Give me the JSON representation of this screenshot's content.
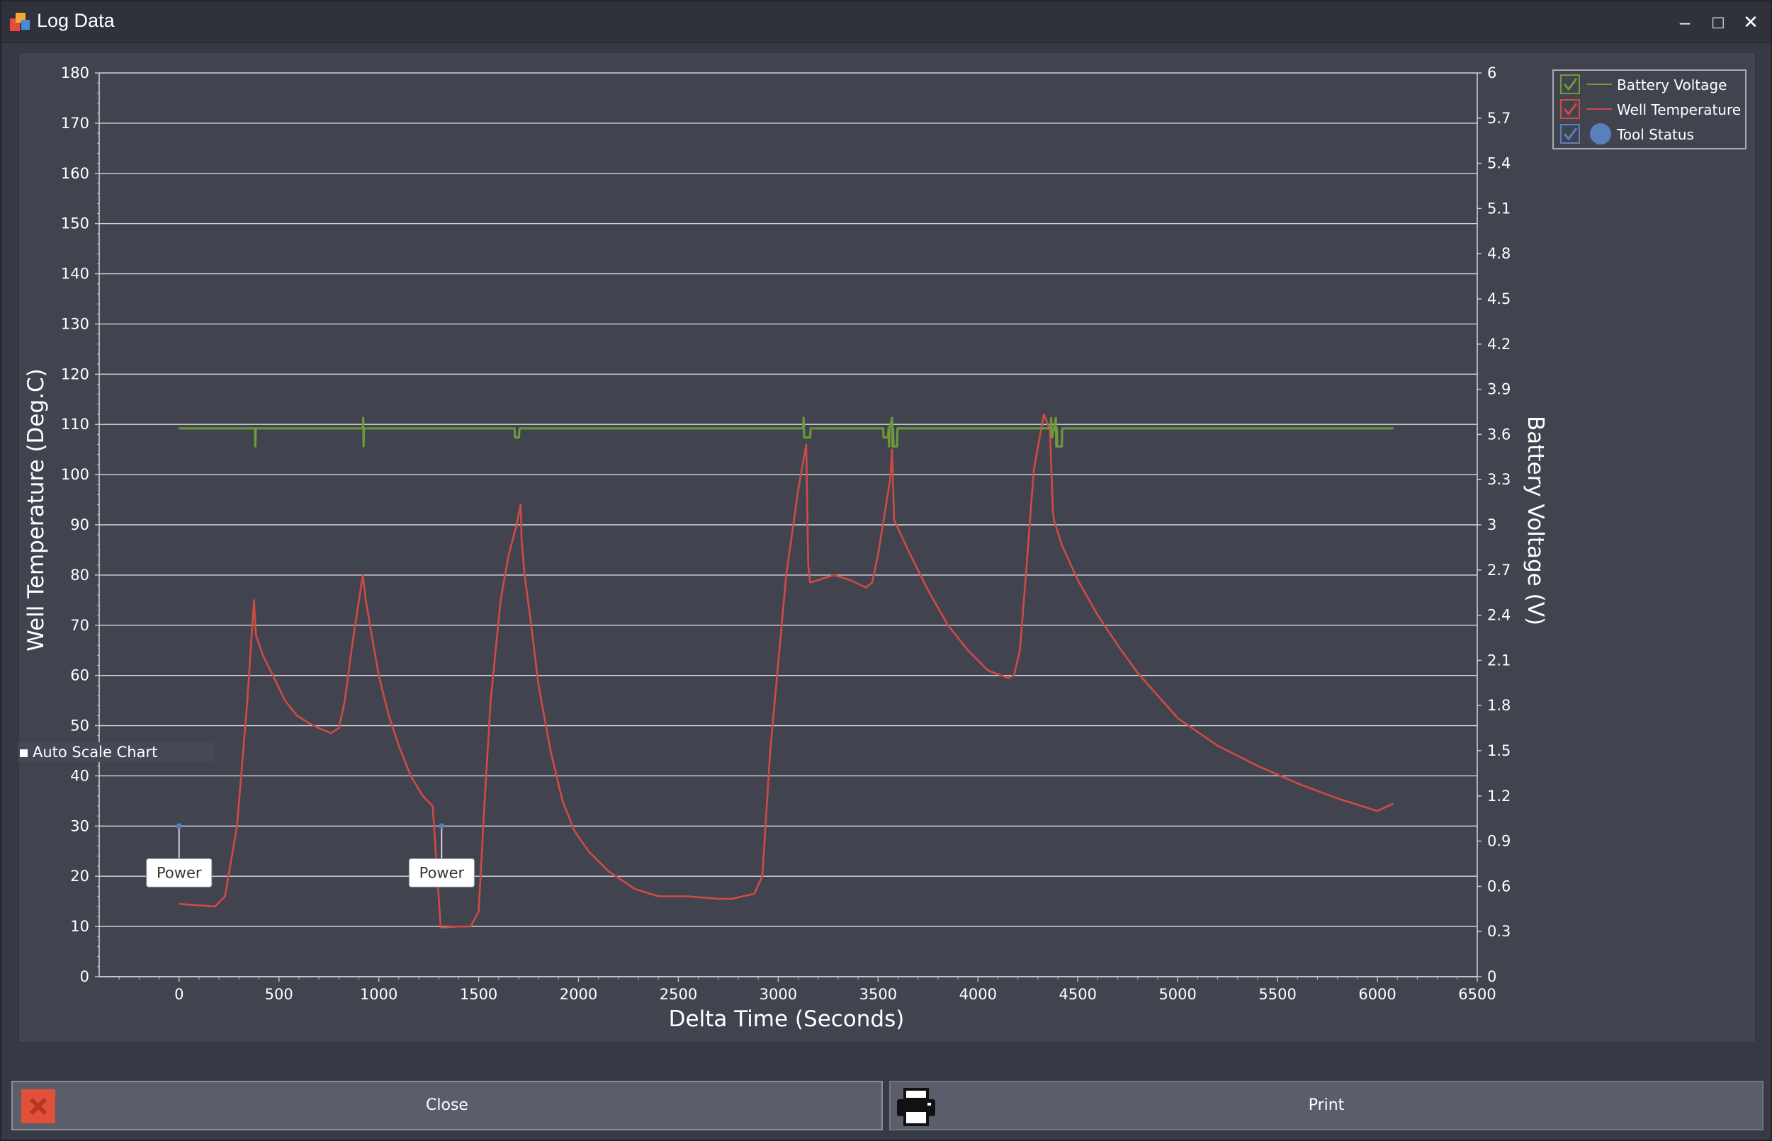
{
  "window": {
    "title": "Log Data",
    "controls": {
      "minimize": "–",
      "maximize": "□",
      "close": "✕"
    }
  },
  "toggle": {
    "label": "Auto Scale Chart"
  },
  "buttons": {
    "close_label": "Close",
    "print_label": "Print"
  },
  "icons": {
    "app": "app-logo-icon",
    "close": "close-x-icon",
    "print": "printer-icon"
  },
  "colors": {
    "battery": "#6e9a3a",
    "temperature": "#d04a43",
    "tool_status": "#5b7fbd",
    "close_icon": "#e2503a"
  },
  "chart_data": {
    "type": "line",
    "xlabel": "Delta Time (Seconds)",
    "ylabel": "Well Temperature (Deg.C)",
    "y2label": "Battery Voltage (V)",
    "xlim": [
      -400,
      6500
    ],
    "ylim": [
      0,
      180
    ],
    "y2lim": [
      0,
      6
    ],
    "x_ticks": [
      0,
      500,
      1000,
      1500,
      2000,
      2500,
      3000,
      3500,
      4000,
      4500,
      5000,
      5500,
      6000,
      6500
    ],
    "y_ticks": [
      0,
      10,
      20,
      30,
      40,
      50,
      60,
      70,
      80,
      90,
      100,
      110,
      120,
      130,
      140,
      150,
      160,
      170,
      180
    ],
    "y2_ticks": [
      0,
      0.3,
      0.6,
      0.9,
      1.2,
      1.5,
      1.8,
      2.1,
      2.4,
      2.7,
      3,
      3.3,
      3.6,
      3.9,
      4.2,
      4.5,
      4.8,
      5.1,
      5.4,
      5.7,
      6
    ],
    "grid": true,
    "legend_position": "top-right",
    "legend": [
      {
        "label": "Battery Voltage",
        "checked": true,
        "marker": "line"
      },
      {
        "label": "Well Temperature",
        "checked": true,
        "marker": "line"
      },
      {
        "label": "Tool Status",
        "checked": true,
        "marker": "circle"
      }
    ],
    "series": [
      {
        "name": "Well Temperature",
        "axis": "left",
        "x": [
          0,
          100,
          180,
          230,
          290,
          340,
          375,
          385,
          420,
          470,
          530,
          590,
          650,
          700,
          760,
          800,
          830,
          870,
          920,
          935,
          960,
          1000,
          1050,
          1100,
          1160,
          1220,
          1270,
          1310,
          1320,
          1330,
          1400,
          1460,
          1500,
          1530,
          1560,
          1610,
          1650,
          1690,
          1710,
          1715,
          1730,
          1760,
          1800,
          1860,
          1920,
          1980,
          2050,
          2150,
          2280,
          2400,
          2550,
          2700,
          2770,
          2820,
          2880,
          2920,
          2960,
          3040,
          3100,
          3140,
          3150,
          3160,
          3200,
          3280,
          3360,
          3440,
          3470,
          3500,
          3560,
          3570,
          3580,
          3650,
          3750,
          3850,
          3950,
          4050,
          4150,
          4180,
          4210,
          4240,
          4280,
          4330,
          4360,
          4375,
          4380,
          4420,
          4500,
          4600,
          4700,
          4800,
          4900,
          5000,
          5200,
          5400,
          5600,
          5800,
          6000,
          6080
        ],
        "values": [
          14.5,
          14.2,
          14.0,
          16,
          30,
          54,
          75,
          68,
          64,
          60,
          55,
          52,
          50.5,
          49.5,
          48.5,
          49.5,
          55,
          67,
          80,
          75,
          69,
          60,
          52,
          46,
          40,
          36,
          34,
          9.8,
          9.8,
          9.8,
          10,
          10,
          13,
          35,
          55,
          75,
          84,
          90,
          94,
          87,
          80,
          71,
          58,
          45,
          35,
          29,
          25,
          21,
          17.5,
          16,
          16,
          15.5,
          15.5,
          16,
          16.5,
          20,
          45,
          80,
          97,
          106,
          82,
          78.5,
          79,
          80,
          79,
          77.5,
          78.5,
          84,
          99,
          105,
          91,
          85,
          77,
          70,
          65,
          61,
          59.5,
          60,
          65,
          80,
          101,
          112,
          109,
          93,
          91,
          86,
          79,
          72,
          66,
          60.5,
          56,
          51.5,
          46,
          42,
          38.5,
          35.5,
          33,
          34.5
        ]
      },
      {
        "name": "Battery Voltage",
        "axis": "right",
        "x": [
          0,
          380,
          382,
          384,
          386,
          920,
          922,
          924,
          926,
          928,
          1680,
          1682,
          1702,
          1704,
          3125,
          3127,
          3130,
          3132,
          3160,
          3162,
          3525,
          3527,
          3550,
          3552,
          3555,
          3557,
          3570,
          3572,
          3575,
          3577,
          3595,
          3597,
          4365,
          4367,
          4370,
          4372,
          4390,
          4392,
          4395,
          4397,
          4420,
          4422,
          6080
        ],
        "values": [
          3.64,
          3.64,
          3.52,
          3.64,
          3.64,
          3.64,
          3.71,
          3.52,
          3.64,
          3.64,
          3.64,
          3.58,
          3.58,
          3.64,
          3.64,
          3.71,
          3.58,
          3.58,
          3.58,
          3.64,
          3.64,
          3.58,
          3.58,
          3.64,
          3.52,
          3.64,
          3.71,
          3.52,
          3.64,
          3.52,
          3.52,
          3.64,
          3.64,
          3.71,
          3.58,
          3.58,
          3.71,
          3.52,
          3.64,
          3.52,
          3.52,
          3.64,
          3.64
        ]
      },
      {
        "name": "Tool Status",
        "axis": "left",
        "type": "scatter",
        "x": [
          0,
          1315
        ],
        "values": [
          30,
          30
        ],
        "labels": [
          "Power",
          "Power"
        ]
      }
    ]
  }
}
